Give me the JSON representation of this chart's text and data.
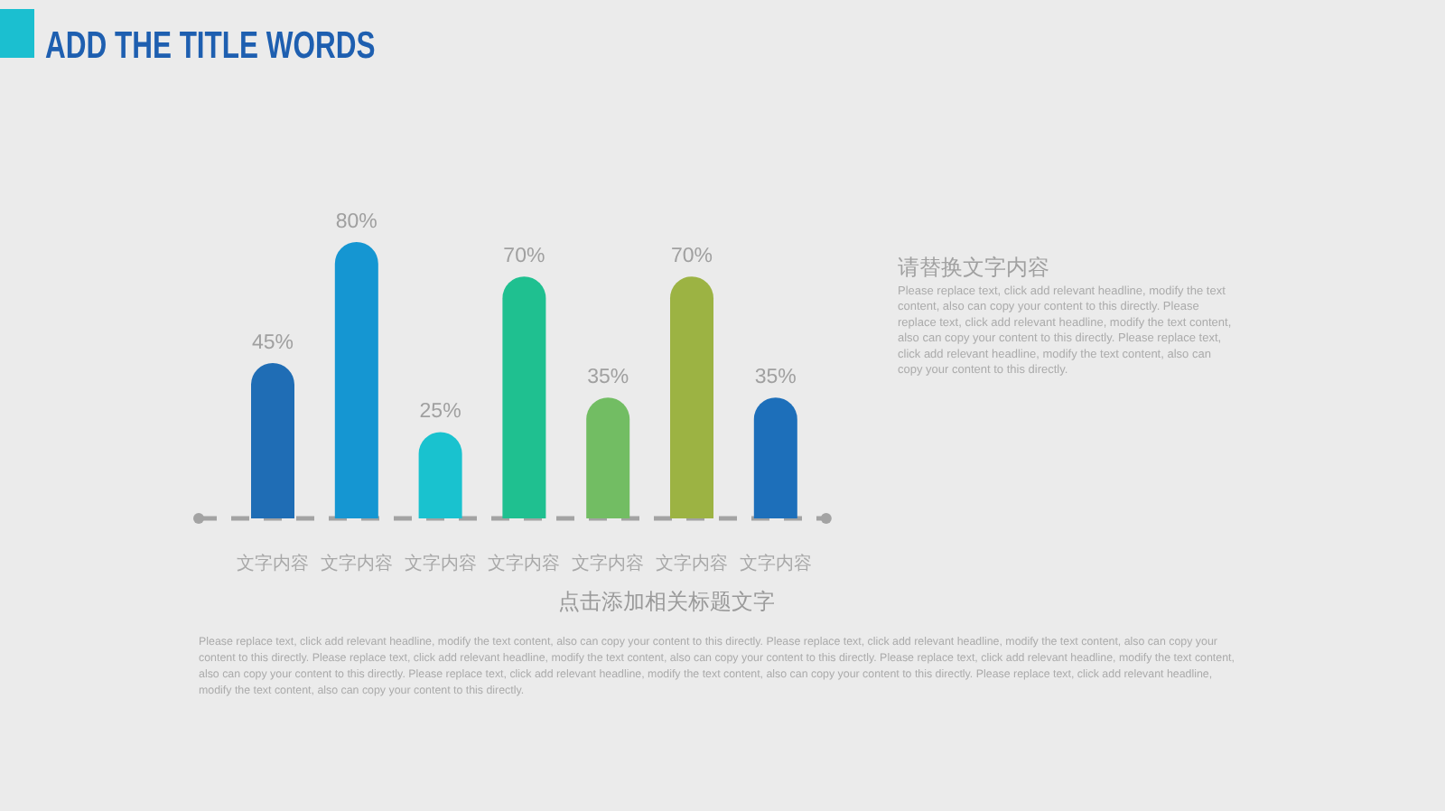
{
  "chart_data": {
    "type": "bar",
    "title": "ADD THE TITLE WORDS",
    "xlabel": "点击添加相关标题文字",
    "categories": [
      "文字内容",
      "文字内容",
      "文字内容",
      "文字内容",
      "文字内容",
      "文字内容",
      "文字内容"
    ],
    "values": [
      45,
      80,
      25,
      70,
      35,
      70,
      35
    ],
    "value_labels": [
      "45%",
      "80%",
      "25%",
      "70%",
      "35%",
      "70%",
      "35%"
    ],
    "colors": [
      "#1f6db5",
      "#1596d2",
      "#19c2cf",
      "#1fc090",
      "#72bd63",
      "#9cb343",
      "#1d6fba"
    ],
    "annotations": [
      "请替换文字内容",
      "Please replace text, click add relevant headline, modify the text content, also can copy your content to this directly. Please replace text, click add relevant headline, modify the text content, also can copy your content to this directly. Please replace text, click add relevant headline, modify the text content, also can copy your content to this directly.",
      "Please replace text, click add relevant headline, modify the text content, also can copy your content to this directly. Please replace text, click add relevant headline, modify the text content, also can copy your content to this directly. Please replace text, click add relevant headline, modify the text content, also can copy your content to this directly. Please replace text, click add relevant headline, modify the text content, also can copy your content to this directly. Please replace text, click add relevant headline, modify the text content, also can copy your content to this directly. Please replace text, click add relevant headline, modify the text content, also can copy your content to this directly."
    ]
  }
}
